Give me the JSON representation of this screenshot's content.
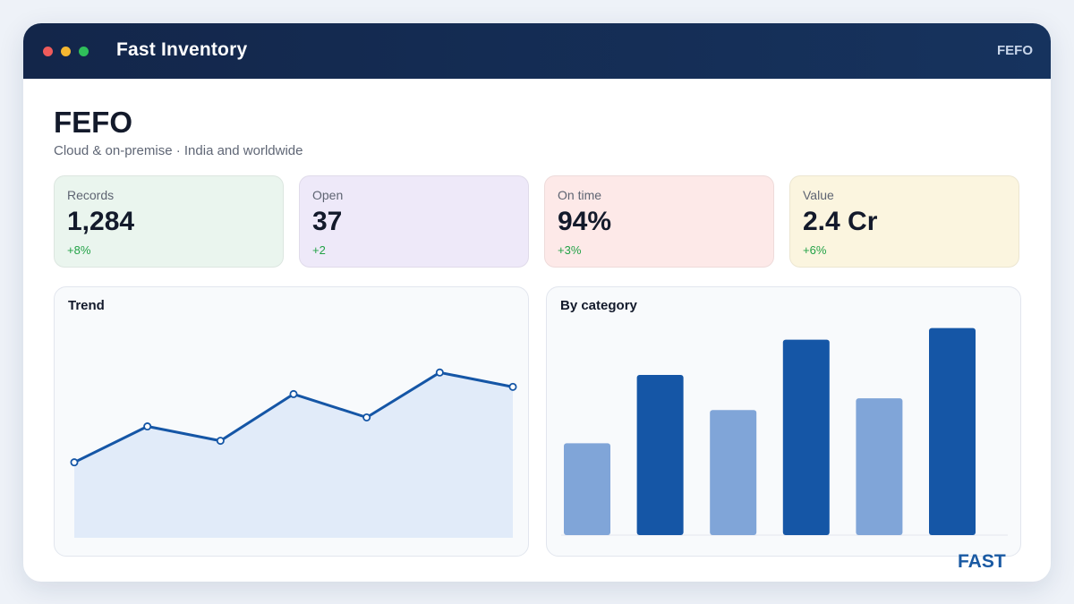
{
  "window": {
    "title": "Fast Inventory",
    "header_badge": "FEFO",
    "controls": [
      "close",
      "minimize",
      "maximize"
    ]
  },
  "page": {
    "title": "FEFO",
    "subtitle": "Cloud & on-premise · India and worldwide"
  },
  "kpis": [
    {
      "label": "Records",
      "value": "1,284",
      "delta": "+8%",
      "bg": "#eaf5ee"
    },
    {
      "label": "Open",
      "value": "37",
      "delta": "+2",
      "bg": "#eee9f9"
    },
    {
      "label": "On time",
      "value": "94%",
      "delta": "+3%",
      "bg": "#fde9e8"
    },
    {
      "label": "Value",
      "value": "2.4 Cr",
      "delta": "+6%",
      "bg": "#fbf5df"
    }
  ],
  "trend": {
    "title": "Trend"
  },
  "category": {
    "title": "By category"
  },
  "brand": "FAST",
  "colors": {
    "header": "#13264a",
    "accent": "#1556a6",
    "accent_light": "#80a5d8",
    "area_fill": "#e1ebf9",
    "positive": "#23a247"
  },
  "chart_data": [
    {
      "type": "area",
      "title": "Trend",
      "x": [
        1,
        2,
        3,
        4,
        5,
        6,
        7
      ],
      "values": [
        42,
        62,
        54,
        80,
        67,
        92,
        84
      ],
      "ylim": [
        0,
        132
      ],
      "grid": false
    },
    {
      "type": "bar",
      "title": "By category",
      "categories": [
        "1",
        "2",
        "3",
        "4",
        "5",
        "6"
      ],
      "values": [
        47,
        82,
        64,
        100,
        70,
        106
      ],
      "highlight": [
        false,
        true,
        false,
        true,
        false,
        true
      ],
      "ylim": [
        0,
        120
      ],
      "grid": false
    }
  ]
}
